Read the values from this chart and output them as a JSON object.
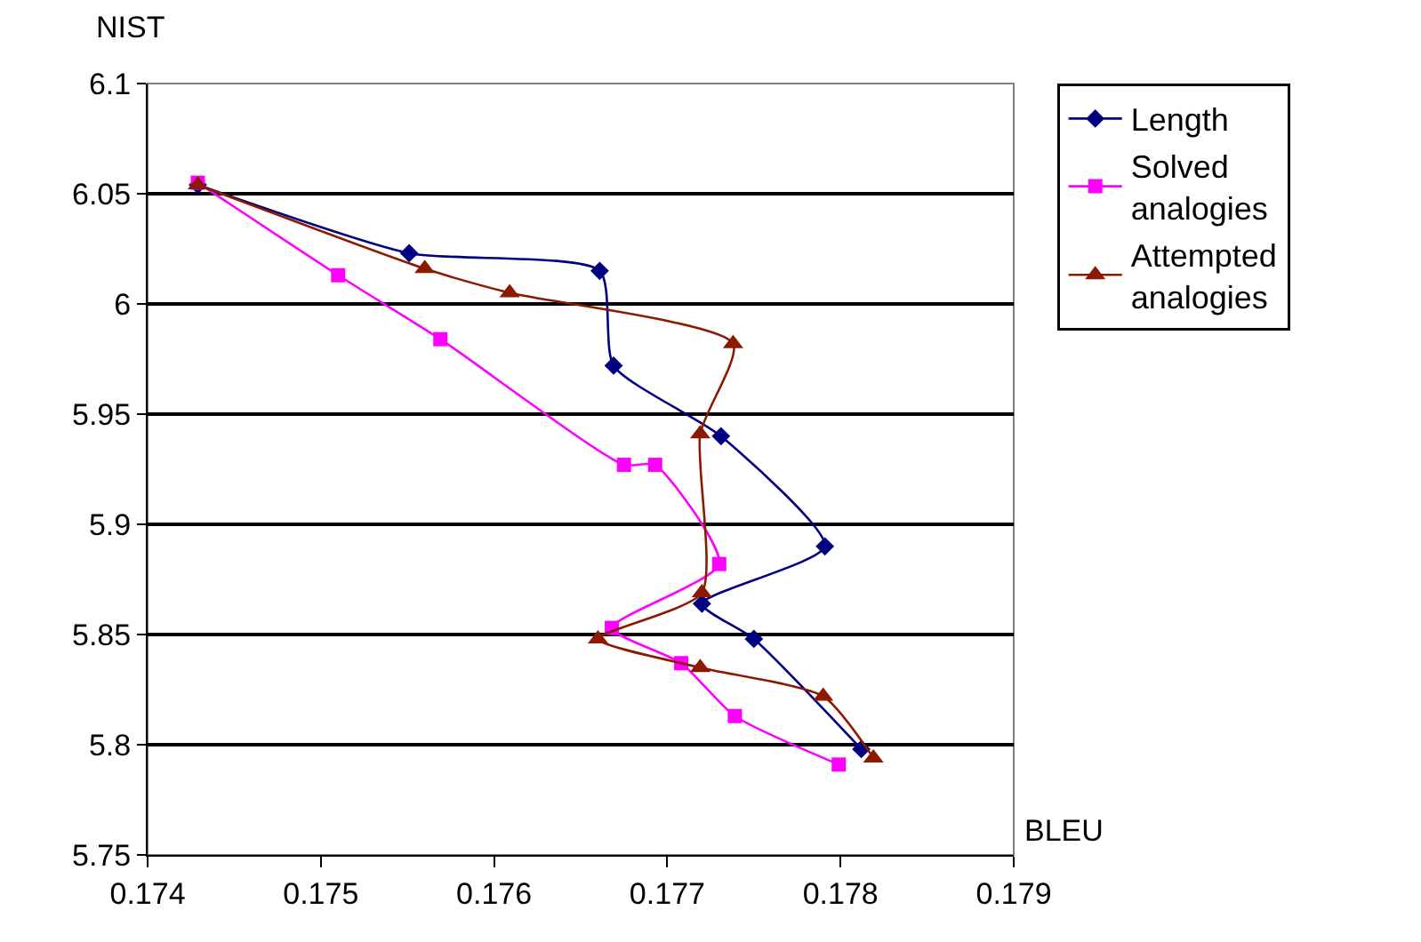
{
  "chart_data": {
    "type": "line",
    "xlabel": "BLEU",
    "ylabel": "NIST",
    "xlim": [
      0.174,
      0.179
    ],
    "ylim": [
      5.75,
      6.1
    ],
    "xticks": [
      0.174,
      0.175,
      0.176,
      0.177,
      0.178,
      0.179
    ],
    "yticks": [
      5.75,
      5.8,
      5.85,
      5.9,
      5.95,
      6,
      6.05,
      6.1
    ],
    "grid": "y",
    "legend": "top right",
    "line_style": "solid",
    "series": [
      {
        "name": "Length",
        "color": "#000080",
        "marker": "diamond",
        "x": [
          0.17429,
          0.17551,
          0.17661,
          0.17669,
          0.17731,
          0.17791,
          0.1772,
          0.1775,
          0.17812
        ],
        "values": [
          6.054,
          6.023,
          6.015,
          5.972,
          5.94,
          5.89,
          5.864,
          5.848,
          5.798
        ]
      },
      {
        "name": "Solved analogies",
        "color": "#ff00ff",
        "marker": "square",
        "x": [
          0.17429,
          0.1751,
          0.17569,
          0.17675,
          0.17693,
          0.1773,
          0.17668,
          0.17708,
          0.17739,
          0.17799
        ],
        "values": [
          6.055,
          6.013,
          5.984,
          5.927,
          5.927,
          5.882,
          5.853,
          5.837,
          5.813,
          5.791
        ]
      },
      {
        "name": "Attempted analogies",
        "color": "#8b1a00",
        "marker": "triangle",
        "x": [
          0.17429,
          0.1756,
          0.17609,
          0.17738,
          0.17719,
          0.1772,
          0.1766,
          0.17719,
          0.1779,
          0.17819
        ],
        "values": [
          6.054,
          6.016,
          6.005,
          5.982,
          5.941,
          5.869,
          5.848,
          5.835,
          5.822,
          5.794
        ]
      }
    ]
  }
}
